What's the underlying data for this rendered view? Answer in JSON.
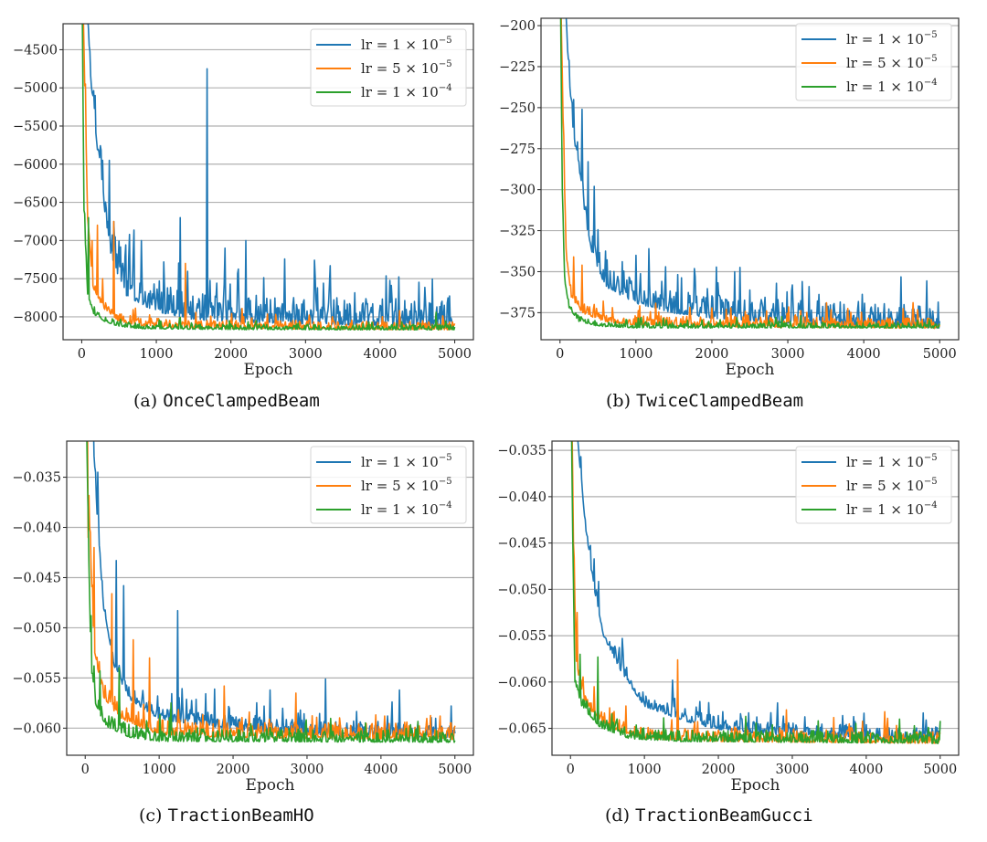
{
  "figure": {
    "legend_entries": [
      {
        "label": "lr = 1 × 10",
        "exp": "−5",
        "color": "#1f77b4"
      },
      {
        "label": "lr = 5 × 10",
        "exp": "−5",
        "color": "#ff7f0e"
      },
      {
        "label": "lr = 1 × 10",
        "exp": "−4",
        "color": "#2ca02c"
      }
    ]
  },
  "chart_data": [
    {
      "type": "line",
      "panel": "a",
      "caption_prefix": "(a)",
      "caption_name": "OnceClampedBeam",
      "title": "",
      "xlabel": "Epoch",
      "ylabel": "",
      "xlim": [
        -250,
        5250
      ],
      "ylim": [
        -8300,
        -4160
      ],
      "xticks": [
        0,
        1000,
        2000,
        3000,
        4000,
        5000
      ],
      "xtick_labels": [
        "0",
        "1000",
        "2000",
        "3000",
        "4000",
        "5000"
      ],
      "yticks": [
        -8000,
        -7500,
        -7000,
        -6500,
        -6000,
        -5500,
        -5000,
        -4500
      ],
      "ytick_labels": [
        "−8000",
        "−7500",
        "−7000",
        "−6500",
        "−6000",
        "−5500",
        "−5000",
        "−4500"
      ],
      "grid": "horizontal",
      "legend_position": "top-right",
      "series": [
        {
          "name": "lr = 1e-5",
          "color": "#1f77b4",
          "trend": [
            [
              0,
              -3000
            ],
            [
              80,
              -4300
            ],
            [
              150,
              -5200
            ],
            [
              250,
              -6200
            ],
            [
              400,
              -7200
            ],
            [
              600,
              -7700
            ],
            [
              1000,
              -7900
            ],
            [
              1500,
              -8000
            ],
            [
              2000,
              -8030
            ],
            [
              3000,
              -8060
            ],
            [
              4000,
              -8080
            ],
            [
              5000,
              -8120
            ]
          ],
          "noise": 230,
          "spikes": [
            [
              100,
              -4450
            ],
            [
              180,
              -5100
            ],
            [
              280,
              -5950
            ],
            [
              370,
              -5950
            ],
            [
              430,
              -6750
            ],
            [
              640,
              -6920
            ],
            [
              800,
              -7000
            ],
            [
              1100,
              -7280
            ],
            [
              1320,
              -6700
            ],
            [
              1680,
              -4750
            ],
            [
              1920,
              -7100
            ],
            [
              2200,
              -7000
            ],
            [
              3160,
              -7620
            ],
            [
              4000,
              -7850
            ],
            [
              4750,
              -7950
            ]
          ]
        },
        {
          "name": "lr = 5e-5",
          "color": "#ff7f0e",
          "trend": [
            [
              0,
              -3000
            ],
            [
              40,
              -5000
            ],
            [
              80,
              -6700
            ],
            [
              150,
              -7600
            ],
            [
              300,
              -7900
            ],
            [
              500,
              -8050
            ],
            [
              800,
              -8110
            ],
            [
              1500,
              -8140
            ],
            [
              3000,
              -8150
            ],
            [
              5000,
              -8160
            ]
          ],
          "noise": 70,
          "spikes": [
            [
              50,
              -4950
            ],
            [
              140,
              -7000
            ],
            [
              210,
              -6800
            ],
            [
              280,
              -7500
            ],
            [
              430,
              -6750
            ],
            [
              1390,
              -7300
            ],
            [
              2900,
              -8080
            ]
          ]
        },
        {
          "name": "lr = 1e-4",
          "color": "#2ca02c",
          "trend": [
            [
              0,
              -3000
            ],
            [
              30,
              -6600
            ],
            [
              80,
              -7700
            ],
            [
              150,
              -7950
            ],
            [
              300,
              -8050
            ],
            [
              500,
              -8120
            ],
            [
              800,
              -8150
            ],
            [
              2000,
              -8160
            ],
            [
              5000,
              -8165
            ]
          ],
          "noise": 45,
          "spikes": [
            [
              40,
              -6650
            ],
            [
              90,
              -6700
            ],
            [
              4750,
              -7940
            ]
          ]
        }
      ]
    },
    {
      "type": "line",
      "panel": "b",
      "caption_prefix": "(b)",
      "caption_name": "TwiceClampedBeam",
      "title": "",
      "xlabel": "Epoch",
      "ylabel": "",
      "xlim": [
        -250,
        5250
      ],
      "ylim": [
        -391.5,
        -195.5
      ],
      "xticks": [
        0,
        1000,
        2000,
        3000,
        4000,
        5000
      ],
      "xtick_labels": [
        "0",
        "1000",
        "2000",
        "3000",
        "4000",
        "5000"
      ],
      "yticks": [
        -375,
        -350,
        -325,
        -300,
        -275,
        -250,
        -225,
        -200
      ],
      "ytick_labels": [
        "−375",
        "−350",
        "−325",
        "−300",
        "−275",
        "−250",
        "−225",
        "−200"
      ],
      "grid": "horizontal",
      "legend_position": "top-right",
      "series": [
        {
          "name": "lr = 1e-5",
          "color": "#1f77b4",
          "trend": [
            [
              0,
              -150
            ],
            [
              80,
              -200
            ],
            [
              150,
              -255
            ],
            [
              250,
              -290
            ],
            [
              400,
              -335
            ],
            [
              600,
              -358
            ],
            [
              1000,
              -368
            ],
            [
              1500,
              -374
            ],
            [
              2000,
              -377
            ],
            [
              3000,
              -380
            ],
            [
              4000,
              -382
            ],
            [
              5000,
              -383
            ]
          ],
          "noise": 9,
          "spikes": [
            [
              180,
              -245
            ],
            [
              290,
              -251
            ],
            [
              370,
              -283
            ],
            [
              450,
              -298
            ],
            [
              1000,
              -340
            ],
            [
              1170,
              -336
            ],
            [
              1780,
              -353
            ],
            [
              2300,
              -350
            ],
            [
              3070,
              -371
            ]
          ]
        },
        {
          "name": "lr = 5e-5",
          "color": "#ff7f0e",
          "trend": [
            [
              0,
              -150
            ],
            [
              40,
              -260
            ],
            [
              80,
              -340
            ],
            [
              150,
              -365
            ],
            [
              300,
              -375
            ],
            [
              600,
              -380
            ],
            [
              1000,
              -382
            ],
            [
              2000,
              -383
            ],
            [
              5000,
              -384
            ]
          ],
          "noise": 4,
          "spikes": [
            [
              50,
              -267
            ],
            [
              180,
              -341
            ],
            [
              290,
              -346
            ],
            [
              450,
              -370
            ]
          ]
        },
        {
          "name": "lr = 1e-4",
          "color": "#2ca02c",
          "trend": [
            [
              0,
              -150
            ],
            [
              30,
              -300
            ],
            [
              60,
              -355
            ],
            [
              120,
              -372
            ],
            [
              250,
              -380
            ],
            [
              500,
              -383
            ],
            [
              1000,
              -384
            ],
            [
              5000,
              -384
            ]
          ],
          "noise": 2,
          "spikes": [
            [
              40,
              -315
            ]
          ]
        }
      ]
    },
    {
      "type": "line",
      "panel": "c",
      "caption_prefix": "(c)",
      "caption_name": "TractionBeamHO",
      "title": "",
      "xlabel": "Epoch",
      "ylabel": "",
      "xlim": [
        -250,
        5250
      ],
      "ylim": [
        -0.0627,
        -0.0314
      ],
      "xticks": [
        0,
        1000,
        2000,
        3000,
        4000,
        5000
      ],
      "xtick_labels": [
        "0",
        "1000",
        "2000",
        "3000",
        "4000",
        "5000"
      ],
      "yticks": [
        -0.06,
        -0.055,
        -0.05,
        -0.045,
        -0.04,
        -0.035
      ],
      "ytick_labels": [
        "−0.060",
        "−0.055",
        "−0.050",
        "−0.045",
        "−0.040",
        "−0.035"
      ],
      "grid": "horizontal",
      "legend_position": "top-right",
      "series": [
        {
          "name": "lr = 1e-5",
          "color": "#1f77b4",
          "trend": [
            [
              0,
              -0.02
            ],
            [
              100,
              -0.03
            ],
            [
              170,
              -0.04
            ],
            [
              250,
              -0.048
            ],
            [
              400,
              -0.054
            ],
            [
              600,
              -0.057
            ],
            [
              1000,
              -0.059
            ],
            [
              2000,
              -0.06
            ],
            [
              3000,
              -0.0605
            ],
            [
              5000,
              -0.0608
            ]
          ],
          "noise": 0.0009,
          "spikes": [
            [
              170,
              -0.0345
            ],
            [
              420,
              -0.0433
            ],
            [
              520,
              -0.0458
            ],
            [
              1250,
              -0.0483
            ],
            [
              1750,
              -0.0561
            ],
            [
              2500,
              -0.0562
            ],
            [
              3250,
              -0.0551
            ],
            [
              4250,
              -0.0562
            ],
            [
              4950,
              -0.0578
            ]
          ]
        },
        {
          "name": "lr = 5e-5",
          "color": "#ff7f0e",
          "trend": [
            [
              0,
              -0.02
            ],
            [
              60,
              -0.04
            ],
            [
              120,
              -0.052
            ],
            [
              250,
              -0.057
            ],
            [
              500,
              -0.059
            ],
            [
              1000,
              -0.0605
            ],
            [
              2000,
              -0.0608
            ],
            [
              5000,
              -0.061
            ]
          ],
          "noise": 0.001,
          "spikes": [
            [
              40,
              -0.041
            ],
            [
              120,
              -0.042
            ],
            [
              360,
              -0.0466
            ],
            [
              650,
              -0.0512
            ],
            [
              870,
              -0.053
            ],
            [
              1880,
              -0.0558
            ],
            [
              2850,
              -0.0565
            ],
            [
              4050,
              -0.0588
            ],
            [
              4800,
              -0.0588
            ]
          ]
        },
        {
          "name": "lr = 1e-4",
          "color": "#2ca02c",
          "trend": [
            [
              0,
              -0.02
            ],
            [
              40,
              -0.04
            ],
            [
              80,
              -0.054
            ],
            [
              150,
              -0.058
            ],
            [
              300,
              -0.0598
            ],
            [
              600,
              -0.0608
            ],
            [
              1000,
              -0.0612
            ],
            [
              5000,
              -0.0613
            ]
          ],
          "noise": 0.0008,
          "spikes": [
            [
              80,
              -0.0488
            ],
            [
              200,
              -0.0543
            ],
            [
              460,
              -0.054
            ],
            [
              1160,
              -0.0575
            ]
          ]
        }
      ]
    },
    {
      "type": "line",
      "panel": "d",
      "caption_prefix": "(d)",
      "caption_name": "TractionBeamGucci",
      "title": "",
      "xlabel": "Epoch",
      "ylabel": "",
      "xlim": [
        -250,
        5250
      ],
      "ylim": [
        -0.0679,
        -0.034
      ],
      "xticks": [
        0,
        1000,
        2000,
        3000,
        4000,
        5000
      ],
      "xtick_labels": [
        "0",
        "1000",
        "2000",
        "3000",
        "4000",
        "5000"
      ],
      "yticks": [
        -0.065,
        -0.06,
        -0.055,
        -0.05,
        -0.045,
        -0.04,
        -0.035
      ],
      "ytick_labels": [
        "−0.065",
        "−0.060",
        "−0.055",
        "−0.050",
        "−0.045",
        "−0.040",
        "−0.035"
      ],
      "grid": "horizontal",
      "legend_position": "top-right",
      "series": [
        {
          "name": "lr = 1e-5",
          "color": "#1f77b4",
          "trend": [
            [
              0,
              -0.02
            ],
            [
              100,
              -0.034
            ],
            [
              200,
              -0.043
            ],
            [
              300,
              -0.049
            ],
            [
              450,
              -0.055
            ],
            [
              700,
              -0.059
            ],
            [
              1000,
              -0.0625
            ],
            [
              1500,
              -0.064
            ],
            [
              2000,
              -0.065
            ],
            [
              3000,
              -0.0657
            ],
            [
              4000,
              -0.066
            ],
            [
              5000,
              -0.0661
            ]
          ],
          "noise": 0.0009,
          "spikes": [
            [
              320,
              -0.0467
            ],
            [
              700,
              -0.0553
            ],
            [
              1380,
              -0.0598
            ],
            [
              1700,
              -0.0627
            ],
            [
              4000,
              -0.0646
            ],
            [
              5000,
              -0.0643
            ]
          ]
        },
        {
          "name": "lr = 5e-5",
          "color": "#ff7f0e",
          "trend": [
            [
              0,
              -0.02
            ],
            [
              40,
              -0.045
            ],
            [
              80,
              -0.058
            ],
            [
              200,
              -0.0625
            ],
            [
              500,
              -0.0648
            ],
            [
              1000,
              -0.066
            ],
            [
              2000,
              -0.0663
            ],
            [
              5000,
              -0.0665
            ]
          ],
          "noise": 0.0008,
          "spikes": [
            [
              90,
              -0.0525
            ],
            [
              320,
              -0.0605
            ],
            [
              1450,
              -0.0576
            ],
            [
              2920,
              -0.063
            ],
            [
              4250,
              -0.0632
            ]
          ]
        },
        {
          "name": "lr = 1e-4",
          "color": "#2ca02c",
          "trend": [
            [
              0,
              -0.02
            ],
            [
              30,
              -0.045
            ],
            [
              60,
              -0.06
            ],
            [
              150,
              -0.0625
            ],
            [
              400,
              -0.0648
            ],
            [
              800,
              -0.066
            ],
            [
              1500,
              -0.0663
            ],
            [
              5000,
              -0.0665
            ]
          ],
          "noise": 0.0008,
          "spikes": [
            [
              130,
              -0.057
            ],
            [
              370,
              -0.0573
            ],
            [
              2370,
              -0.0637
            ],
            [
              4450,
              -0.064
            ]
          ]
        }
      ]
    }
  ]
}
